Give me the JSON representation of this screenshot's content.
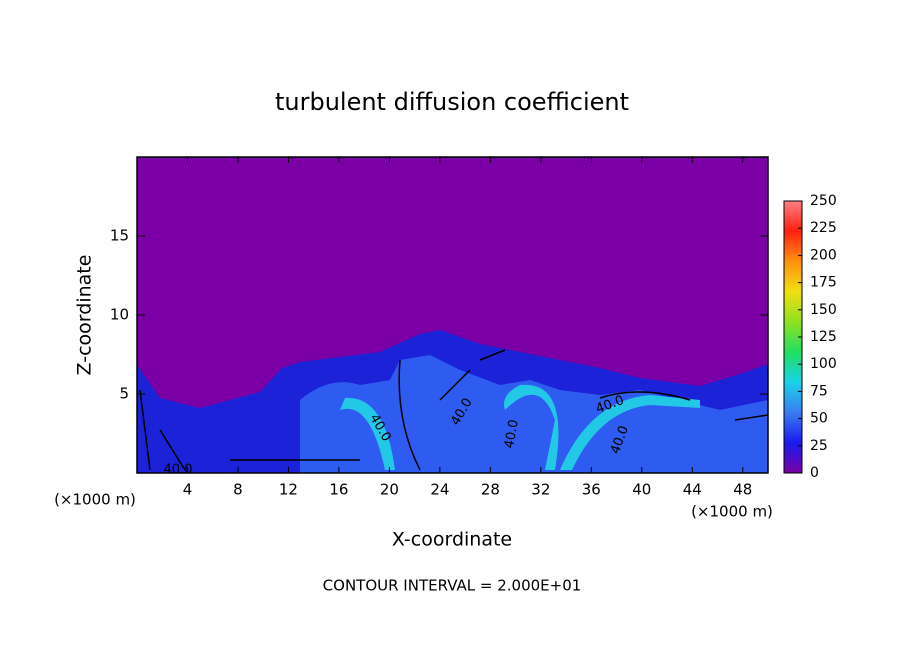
{
  "chart_data": {
    "type": "heatmap",
    "title": "turbulent diffusion coefficient",
    "xlabel": "X-coordinate",
    "ylabel": "Z-coordinate",
    "x_unit": "(×1000 m)",
    "y_unit": "(×1000 m)",
    "footer": "CONTOUR INTERVAL = 2.000E+01",
    "xlim": [
      0,
      50
    ],
    "xticks": [
      4,
      8,
      12,
      16,
      20,
      24,
      28,
      32,
      36,
      40,
      44,
      48
    ],
    "ylim": [
      0,
      20
    ],
    "yticks": [
      5,
      10,
      15
    ],
    "clim": [
      0,
      250
    ],
    "cticks": [
      0,
      25,
      50,
      75,
      100,
      125,
      150,
      175,
      200,
      225,
      250
    ],
    "colormap": [
      "#7a00a6",
      "#1a1aee",
      "#3a7cf0",
      "#19d2e8",
      "#20e060",
      "#90e020",
      "#f0e010",
      "#ff9010",
      "#ff2010",
      "#ff8080"
    ],
    "contour_labels": [
      "40.0",
      "40.0",
      "40.0",
      "40.0",
      "40.0",
      "40.0"
    ]
  }
}
